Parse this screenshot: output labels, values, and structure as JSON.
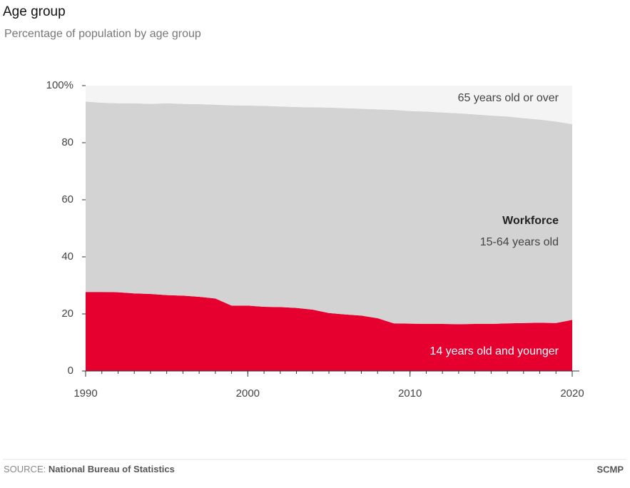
{
  "chart_data": {
    "type": "stacked_area",
    "title": "Age group",
    "subtitle": "Percentage of population by age group",
    "x": [
      1990,
      1991,
      1992,
      1993,
      1994,
      1995,
      1996,
      1997,
      1998,
      1999,
      2000,
      2001,
      2002,
      2003,
      2004,
      2005,
      2006,
      2007,
      2008,
      2009,
      2010,
      2011,
      2012,
      2013,
      2014,
      2015,
      2016,
      2017,
      2018,
      2019,
      2020
    ],
    "series": [
      {
        "name": "14 years old and younger",
        "color": "#e60030",
        "values": [
          27.7,
          27.7,
          27.6,
          27.2,
          27.0,
          26.6,
          26.4,
          26.0,
          25.4,
          22.9,
          22.9,
          22.5,
          22.4,
          22.1,
          21.5,
          20.3,
          19.8,
          19.4,
          18.5,
          16.7,
          16.6,
          16.5,
          16.5,
          16.4,
          16.5,
          16.5,
          16.7,
          16.8,
          16.9,
          16.8,
          17.9
        ]
      },
      {
        "name": "Workforce",
        "color": "#d3d3d3",
        "values": [
          66.7,
          66.3,
          66.2,
          66.6,
          66.6,
          67.2,
          67.2,
          67.5,
          67.9,
          70.2,
          70.1,
          70.4,
          70.3,
          70.4,
          70.9,
          72.0,
          72.3,
          72.5,
          73.2,
          74.8,
          74.5,
          74.4,
          74.1,
          73.9,
          73.4,
          73.0,
          72.5,
          71.8,
          71.2,
          70.6,
          68.6
        ]
      },
      {
        "name": "65 years old or over",
        "color": "#f4f4f4",
        "values": [
          5.6,
          6.0,
          6.2,
          6.2,
          6.4,
          6.2,
          6.4,
          6.5,
          6.7,
          6.9,
          7.0,
          7.1,
          7.3,
          7.5,
          7.6,
          7.7,
          7.9,
          8.1,
          8.3,
          8.5,
          8.9,
          9.1,
          9.4,
          9.7,
          10.1,
          10.5,
          10.8,
          11.4,
          11.9,
          12.6,
          13.5
        ]
      }
    ],
    "annotations": [
      "15-64 years old"
    ],
    "xlim": [
      1990,
      2020
    ],
    "xticks": [
      1990,
      2000,
      2010,
      2020
    ],
    "ylim": [
      0,
      100
    ],
    "yticks": [
      0,
      20,
      40,
      60,
      80,
      {
        "value": 100,
        "label": "100%"
      }
    ],
    "source_label": "SOURCE:",
    "source": "National Bureau of Statistics",
    "credit": "SCMP"
  }
}
